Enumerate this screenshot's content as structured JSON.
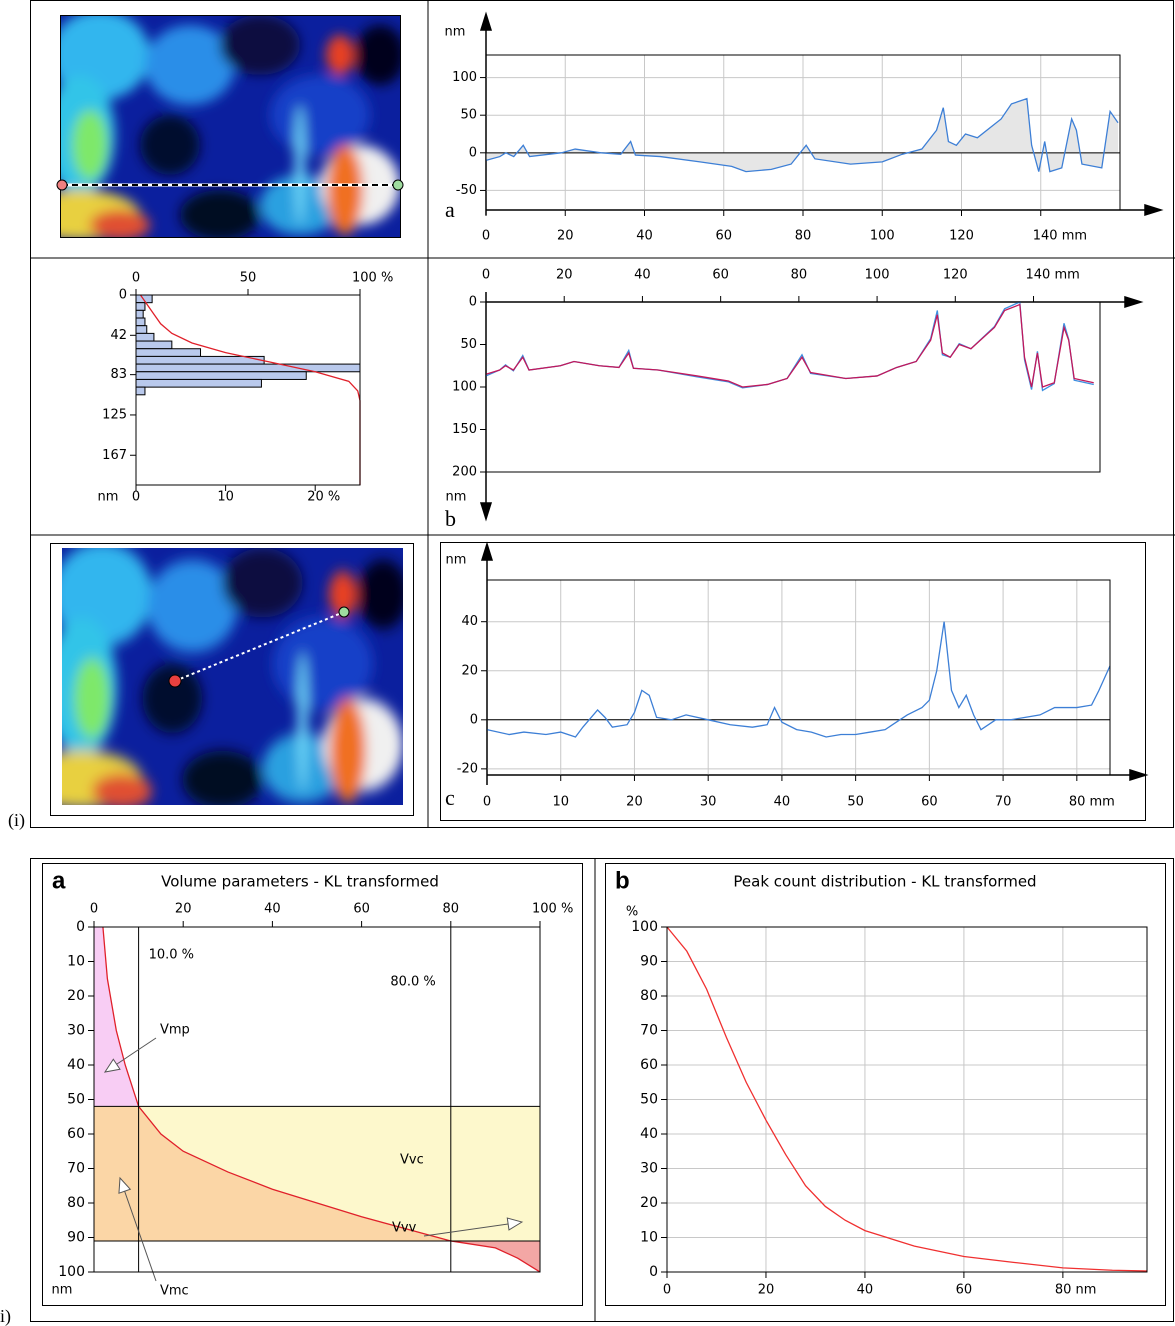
{
  "panel_labels": [
    "(i)",
    "i)"
  ],
  "chart_data": [
    {
      "type": "line",
      "panel_label": "a",
      "y_unit": "nm",
      "grid": true,
      "area": true,
      "zero_line": true,
      "x_axis": "bottom",
      "xlim": [
        0,
        160
      ],
      "ylim": [
        -76,
        130
      ],
      "xticks": [
        0,
        20,
        40,
        60,
        80,
        100,
        120,
        {
          "value": 140,
          "label": "140 mm"
        }
      ],
      "yticks": [
        -50,
        0,
        50,
        100
      ],
      "x": [
        0,
        3.5,
        5,
        7,
        9.4,
        11,
        19,
        22.5,
        29,
        34,
        36.5,
        37.7,
        44,
        54,
        62,
        65.6,
        72,
        77,
        80.8,
        83,
        92,
        100,
        105,
        110,
        113.7,
        115.4,
        116.7,
        118.7,
        121,
        124,
        130,
        132.6,
        136.5,
        137.7,
        139.5,
        141,
        142.3,
        145.3,
        147.8,
        149,
        150.4,
        155.4,
        157.5,
        159.5
      ],
      "series": [
        {
          "color": "#3d7fd6",
          "fill": "#e6e6e6",
          "values": [
            -10,
            -5,
            0,
            -5,
            10,
            -5,
            0,
            5,
            0,
            -2,
            15,
            -3,
            -5,
            -12,
            -18,
            -25,
            -22,
            -15,
            10,
            -8,
            -15,
            -12,
            -2,
            5,
            30,
            60,
            15,
            10,
            25,
            20,
            45,
            65,
            72,
            10,
            -25,
            15,
            -25,
            -20,
            45,
            30,
            -15,
            -20,
            55,
            40
          ]
        }
      ]
    },
    {
      "type": "histogram",
      "y_unit": "nm",
      "y_inverted": true,
      "xlim": [
        0,
        25
      ],
      "x2lim": [
        0,
        100
      ],
      "ylim": [
        0,
        198
      ],
      "xticks": [
        0,
        10,
        {
          "value": 20,
          "label": "20 %"
        }
      ],
      "x2ticks": [
        0,
        50,
        {
          "value": 100,
          "label": "100 %"
        }
      ],
      "yticks": [
        0,
        42,
        83,
        125,
        167
      ],
      "bins": [
        0,
        8,
        16,
        24,
        32,
        40,
        48,
        56,
        64,
        72,
        80,
        88,
        96,
        104
      ],
      "counts": [
        1.8,
        1.0,
        0.8,
        1.0,
        1.2,
        2.0,
        4.0,
        7.2,
        14.3,
        25,
        19,
        14,
        1.0
      ],
      "color": "#b9c9ec",
      "series": [
        {
          "color": "#e0202a",
          "axis": "x2",
          "x": [
            2,
            5,
            8,
            11,
            16,
            25,
            40,
            60,
            80,
            95,
            99,
            100,
            100
          ],
          "values": [
            0,
            10,
            20,
            30,
            40,
            50,
            60,
            70,
            80,
            90,
            100,
            110,
            198
          ]
        }
      ]
    },
    {
      "type": "line",
      "panel_label": "b",
      "y_unit": "nm",
      "y_inverted": true,
      "x_axis": "top",
      "xlim": [
        0,
        157
      ],
      "ylim": [
        0,
        200
      ],
      "xticks": [
        0,
        20,
        40,
        60,
        80,
        100,
        120,
        {
          "value": 140,
          "label": "140 mm"
        }
      ],
      "yticks": [
        0,
        50,
        100,
        150,
        200
      ],
      "x": [
        0,
        3.5,
        5,
        7,
        9.4,
        11,
        19,
        22.5,
        29,
        34,
        36.5,
        37.7,
        44,
        54,
        62,
        65.6,
        72,
        77,
        80.8,
        83,
        92,
        100,
        105,
        110,
        113.7,
        115.4,
        116.7,
        118.7,
        121,
        124,
        130,
        132.6,
        136.5,
        137.7,
        139.5,
        141,
        142.3,
        145.3,
        147.8,
        149,
        150.4,
        155.4
      ],
      "series": [
        {
          "color": "#3d8fe0",
          "values": [
            87,
            80,
            74,
            81,
            63,
            80,
            75,
            70,
            75,
            77,
            57,
            78,
            80,
            88,
            94,
            101,
            97,
            90,
            62,
            84,
            90,
            87,
            77,
            70,
            43,
            10,
            62,
            65,
            49,
            55,
            29,
            8,
            0,
            68,
            103,
            58,
            104,
            96,
            25,
            44,
            92,
            97
          ]
        },
        {
          "color": "#c2185b",
          "values": [
            85,
            80,
            75,
            80,
            65,
            80,
            75,
            70,
            75,
            77,
            60,
            78,
            80,
            87,
            93,
            100,
            97,
            90,
            65,
            83,
            90,
            87,
            77,
            70,
            45,
            15,
            60,
            65,
            50,
            55,
            30,
            10,
            3,
            65,
            100,
            60,
            100,
            95,
            30,
            45,
            90,
            95
          ]
        }
      ]
    },
    {
      "type": "line",
      "panel_label": "c",
      "y_unit": "nm",
      "grid": true,
      "zero_line": true,
      "x_axis": "bottom",
      "xlim": [
        0,
        84.5
      ],
      "ylim": [
        -22.5,
        57
      ],
      "xticks": [
        0,
        10,
        20,
        30,
        40,
        50,
        60,
        70,
        {
          "value": 80,
          "label": "80 mm"
        }
      ],
      "yticks": [
        -20,
        0,
        20,
        40
      ],
      "x": [
        0,
        3,
        5,
        8,
        10,
        12,
        13,
        15,
        16,
        17,
        19,
        20,
        21,
        22,
        23,
        25,
        27,
        30,
        33,
        36,
        38,
        39,
        40,
        42,
        44,
        46,
        48,
        50,
        52,
        54,
        55,
        56,
        57,
        59,
        60,
        61,
        62,
        63,
        64,
        65,
        66,
        67,
        69,
        71,
        73,
        75,
        77,
        80,
        82,
        83,
        84.5
      ],
      "series": [
        {
          "color": "#3d7fd6",
          "values": [
            -4,
            -6,
            -5,
            -6,
            -5,
            -7,
            -3,
            4,
            1,
            -3,
            -2,
            3,
            12,
            10,
            1,
            0,
            2,
            0,
            -2,
            -3,
            -2,
            5,
            -1,
            -4,
            -5,
            -7,
            -6,
            -6,
            -5,
            -4,
            -2,
            0,
            2,
            5,
            8,
            20,
            40,
            12,
            5,
            10,
            2,
            -4,
            0,
            0,
            1,
            2,
            5,
            5,
            6,
            12,
            22
          ]
        }
      ]
    },
    {
      "type": "bearing",
      "panel_label": "a",
      "title": "Volume parameters - KL transformed",
      "y_unit": "nm",
      "y_inverted": true,
      "x_axis": "top",
      "xlim": [
        0,
        100
      ],
      "ylim": [
        0,
        100
      ],
      "xticks": [
        0,
        20,
        40,
        60,
        80,
        {
          "value": 100,
          "label": "100 %"
        }
      ],
      "yticks": [
        0,
        10,
        20,
        30,
        40,
        50,
        60,
        70,
        80,
        90,
        100
      ],
      "thresholds": {
        "values": [
          10,
          80
        ],
        "value_labels": [
          "10.0 %",
          "80.0 %"
        ]
      },
      "hlines": [
        52,
        91
      ],
      "fills": [
        "#f8cdf4",
        "#fbd6a6",
        "#fdf8cc",
        "#f3a7a5"
      ],
      "annotations": [
        "Vmp",
        "Vmc",
        "Vvc",
        "Vvv"
      ],
      "x": [
        2,
        3,
        5,
        7,
        10,
        15,
        20,
        30,
        40,
        50,
        60,
        70,
        80,
        90,
        95,
        100
      ],
      "series": [
        {
          "color": "#e0202a",
          "values": [
            0,
            15,
            30,
            40,
            52,
            60,
            65,
            71,
            76,
            80,
            84,
            87.5,
            91,
            93,
            96,
            100
          ]
        }
      ]
    },
    {
      "type": "line",
      "panel_label": "b",
      "title": "Peak count distribution - KL transformed",
      "y_unit": "%",
      "grid": true,
      "x_axis": "bottom",
      "xlim": [
        0,
        97
      ],
      "ylim": [
        0,
        100
      ],
      "xticks": [
        0,
        20,
        40,
        60,
        {
          "value": 80,
          "label": "80 nm"
        }
      ],
      "yticks": [
        0,
        10,
        20,
        30,
        40,
        50,
        60,
        70,
        80,
        90,
        100
      ],
      "x": [
        0,
        4,
        8,
        12,
        16,
        20,
        24,
        28,
        32,
        36,
        40,
        50,
        60,
        70,
        80,
        90,
        97
      ],
      "series": [
        {
          "color": "#f03030",
          "values": [
            100,
            93,
            82,
            68,
            55,
            44,
            34,
            25,
            19,
            15,
            12,
            7.5,
            4.5,
            2.8,
            1.2,
            0.5,
            0.3
          ]
        }
      ]
    }
  ]
}
